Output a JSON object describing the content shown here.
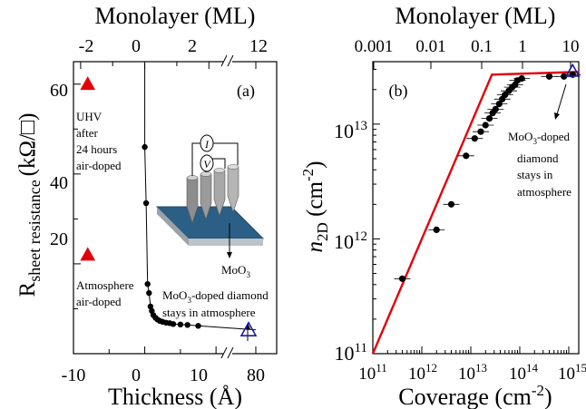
{
  "chart_data": [
    {
      "type": "scatter",
      "panel_label": "(a)",
      "xlabel": "Thickness (Å)",
      "ylabel_main": "R",
      "ylabel_sub": "sheet resistance",
      "ylabel_unit": "(kΩ/□)",
      "top_label": "Monolayer (ML)",
      "xlim": [
        -10,
        11
      ],
      "broken_axis_value": 80,
      "ylim": [
        0,
        65
      ],
      "x_ticks": [
        "-10",
        "0",
        "10",
        "80"
      ],
      "y_ticks": [
        "20",
        "40",
        "60"
      ],
      "top_ticks": [
        "-2",
        "0",
        "2",
        "12"
      ],
      "series": [
        {
          "marker": "circle",
          "color": "#000000",
          "x": [
            0,
            0.2,
            0.4,
            0.6,
            0.8,
            1.0,
            1.2,
            1.5,
            1.8,
            2.1,
            2.5,
            3.0,
            3.5,
            4.0,
            5.0,
            6.0,
            7.5
          ],
          "y": [
            46,
            33.5,
            15.5,
            13.5,
            10.5,
            9.5,
            8.6,
            8.0,
            7.6,
            7.3,
            7.1,
            6.9,
            6.8,
            6.6,
            6.5,
            6.4,
            6.2
          ]
        },
        {
          "marker": "triangle-filled",
          "color": "#e3000b",
          "x": [
            -8,
            -8
          ],
          "y": [
            60,
            22
          ]
        },
        {
          "marker": "triangle-open",
          "color": "#1a1aa6",
          "x": [
            80
          ],
          "y": [
            5.3
          ]
        }
      ],
      "annotations": {
        "uhv": [
          "UHV",
          "after",
          "24 hours",
          "air-doped"
        ],
        "atm": [
          "Atmosphere",
          "air-doped"
        ],
        "moo3": "MoO",
        "moo3_sub": "3",
        "doped_line1_a": "MoO",
        "doped_line1_sub": "3",
        "doped_line1_b": "-doped diamond",
        "doped_line2": "stays in atmosphere",
        "probe_i": "I",
        "probe_v": "V"
      }
    },
    {
      "type": "scatter",
      "panel_label": "(b)",
      "xlabel": "Coverage (cm",
      "xlabel_exp": "-2",
      "xlabel_end": ")",
      "ylabel_n": "n",
      "ylabel_sub": "2D",
      "ylabel_unit": " (cm",
      "ylabel_exp": "-2",
      "ylabel_end": ")",
      "top_label": "Monolayer (ML)",
      "x_scale": "log",
      "y_scale": "log",
      "xlim": [
        100000000000.0,
        1600000000000000.0
      ],
      "ylim": [
        100000000000.0,
        35000000000000.0
      ],
      "x_tick_exps": [
        "11",
        "12",
        "13",
        "14",
        "15"
      ],
      "x_tick_base": "10",
      "y_tick_exps": [
        "11",
        "12",
        "13"
      ],
      "y_tick_base": "10",
      "top_ticks": [
        "0.001",
        "0.01",
        "0.1",
        "1",
        "10"
      ],
      "series": [
        {
          "marker": "circle",
          "color": "#000000",
          "x": [
            400000000000.0,
            2000000000000.0,
            4000000000000.0,
            8000000000000.0,
            12000000000000.0,
            16000000000000.0,
            20000000000000.0,
            24000000000000.0,
            28000000000000.0,
            32000000000000.0,
            38000000000000.0,
            44000000000000.0,
            50000000000000.0,
            60000000000000.0,
            70000000000000.0,
            80000000000000.0,
            90000000000000.0,
            110000000000000.0,
            400000000000000.0,
            800000000000000.0,
            1200000000000000.0
          ],
          "y": [
            450000000000.0,
            1200000000000.0,
            2000000000000.0,
            5300000000000.0,
            7500000000000.0,
            8600000000000.0,
            9800000000000.0,
            11200000000000.0,
            12500000000000.0,
            13500000000000.0,
            15000000000000.0,
            16500000000000.0,
            18000000000000.0,
            19500000000000.0,
            21000000000000.0,
            22000000000000.0,
            24000000000000.0,
            25000000000000.0,
            26000000000000.0,
            26000000000000.0,
            27000000000000.0
          ]
        },
        {
          "type": "line",
          "color": "#e3000b",
          "x": [
            100000000000.0,
            27000000000000.0,
            1600000000000000.0
          ],
          "y": [
            100000000000.0,
            27000000000000.0,
            28500000000000.0
          ]
        },
        {
          "marker": "triangle-open",
          "color": "#1a1aa6",
          "x": [
            1200000000000000.0
          ],
          "y": [
            29000000000000.0
          ]
        }
      ],
      "annotations": {
        "doped_a": "MoO",
        "doped_sub": "3",
        "doped_b": "-doped",
        "lines": [
          "diamond",
          "stays in",
          "atmosphere"
        ]
      }
    }
  ]
}
